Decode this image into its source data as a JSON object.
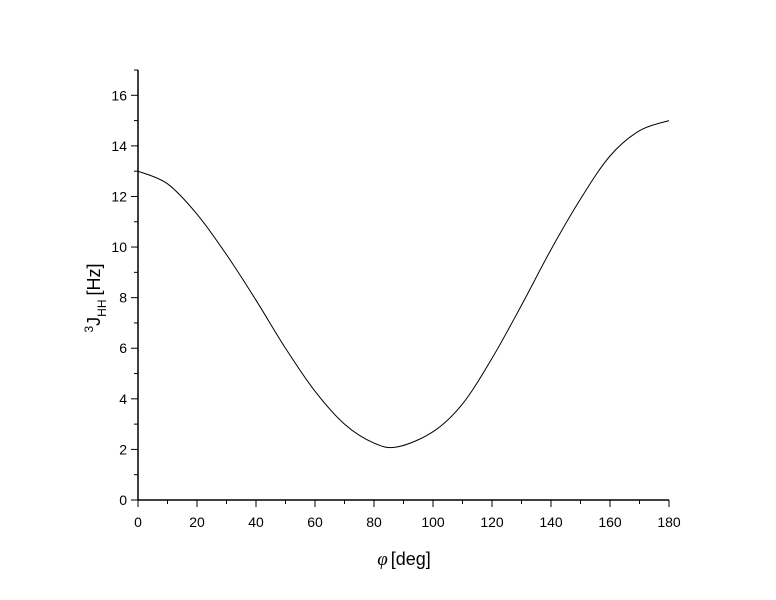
{
  "chart_data": {
    "type": "line",
    "xlabel_symbol": "φ",
    "xlabel_unit": "[deg]",
    "ylabel_sup": "3",
    "ylabel_main": "J",
    "ylabel_sub": "HH",
    "ylabel_unit": "[Hz]",
    "xlim": [
      0,
      180
    ],
    "ylim": [
      0,
      17
    ],
    "x_ticks": [
      0,
      20,
      40,
      60,
      80,
      100,
      120,
      140,
      160,
      180
    ],
    "y_ticks": [
      0,
      2,
      4,
      6,
      8,
      10,
      12,
      14,
      16
    ],
    "grid": false,
    "colors": {
      "line": "#000000",
      "axis": "#000000"
    },
    "series": [
      {
        "x": [
          0,
          10,
          20,
          30,
          40,
          50,
          60,
          70,
          80,
          88,
          100,
          110,
          120,
          130,
          140,
          150,
          160,
          170,
          180
        ],
        "y": [
          13.0,
          12.5,
          11.3,
          9.7,
          7.9,
          6.0,
          4.3,
          3.0,
          2.25,
          2.1,
          2.7,
          3.8,
          5.6,
          7.7,
          9.9,
          11.9,
          13.6,
          14.6,
          15.0
        ]
      }
    ]
  }
}
